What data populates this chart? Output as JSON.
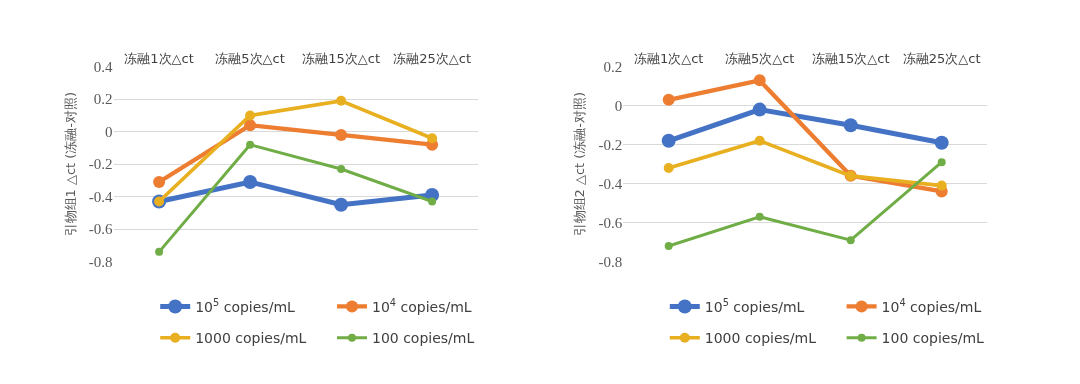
{
  "chart_data": [
    {
      "type": "line",
      "categories": [
        "冻融1次△ct",
        "冻融5次△ct",
        "冻融15次△ct",
        "冻融25次△ct"
      ],
      "ylabel": "引物组1 △ct (冻融-对照)",
      "ylim": [
        -0.8,
        0.4
      ],
      "yticks": [
        -0.8,
        -0.6,
        -0.4,
        -0.2,
        0,
        0.2,
        0.4
      ],
      "grid": "y",
      "legend": "bottom",
      "marker": "circle",
      "line_style": "solid",
      "series": [
        {
          "name": "10$^{5}$ copies/mL",
          "color": "#4472c4",
          "values": [
            -0.43,
            -0.31,
            -0.45,
            -0.39
          ]
        },
        {
          "name": "10$^{4}$ copies/mL",
          "color": "#ed7d31",
          "values": [
            -0.31,
            0.04,
            -0.02,
            -0.08
          ]
        },
        {
          "name": "1000 copies/mL",
          "color": "#e8b020",
          "values": [
            -0.43,
            0.1,
            0.19,
            -0.04
          ]
        },
        {
          "name": "100 copies/mL",
          "color": "#70ad47",
          "values": [
            -0.74,
            -0.08,
            -0.23,
            -0.43
          ]
        }
      ]
    },
    {
      "type": "line",
      "categories": [
        "冻融1次△ct",
        "冻融5次△ct",
        "冻融15次△ct",
        "冻融25次△ct"
      ],
      "ylabel": "引物组2 △ct (冻融-对照)",
      "ylim": [
        -0.8,
        0.2
      ],
      "yticks": [
        -0.8,
        -0.6,
        -0.4,
        -0.2,
        0,
        0.2
      ],
      "grid": "y",
      "legend": "bottom",
      "marker": "circle",
      "line_style": "solid",
      "series": [
        {
          "name": "10$^{5}$ copies/mL",
          "color": "#4472c4",
          "values": [
            -0.18,
            -0.02,
            -0.1,
            -0.19
          ]
        },
        {
          "name": "10$^{4}$ copies/mL",
          "color": "#ed7d31",
          "values": [
            0.03,
            0.13,
            -0.36,
            -0.44
          ]
        },
        {
          "name": "1000 copies/mL",
          "color": "#e8b020",
          "values": [
            -0.32,
            -0.18,
            -0.36,
            -0.41
          ]
        },
        {
          "name": "100 copies/mL",
          "color": "#70ad47",
          "values": [
            -0.72,
            -0.57,
            -0.69,
            -0.29
          ]
        }
      ]
    }
  ]
}
